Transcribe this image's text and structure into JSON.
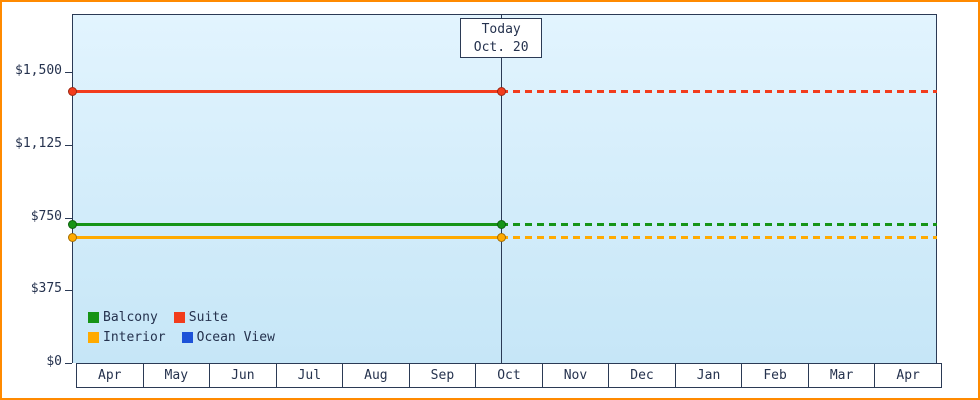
{
  "colors": {
    "frame": "#ff8a00",
    "plot_bg_top": "#e2f4fe",
    "plot_bg_bottom": "#c6e6f7",
    "axis": "#2b3a55",
    "text": "#25324e",
    "balcony": "#169416",
    "suite": "#f23c1c",
    "interior": "#ffaa00",
    "ocean_view": "#1d52d8"
  },
  "chart_data": {
    "type": "line",
    "title": "",
    "xlabel": "",
    "ylabel": "",
    "x_categories": [
      "Apr",
      "May",
      "Jun",
      "Jul",
      "Aug",
      "Sep",
      "Oct",
      "Nov",
      "Dec",
      "Jan",
      "Feb",
      "Mar",
      "Apr"
    ],
    "y_ticks": [
      "$1,500",
      "$1,125",
      "$750",
      "$375",
      "$0"
    ],
    "y_tick_values": [
      1500,
      1125,
      750,
      375,
      0
    ],
    "ylim": [
      0,
      1500
    ],
    "grid": false,
    "legend_position": "bottom-left-inside",
    "today": {
      "label_line1": "Today",
      "label_line2": "Oct. 20",
      "month": "Oct",
      "month_index": 6,
      "fraction": 0.45
    },
    "series": [
      {
        "name": "Balcony",
        "color_key": "balcony",
        "value": 715,
        "solid_until": "today",
        "dotted_after": true
      },
      {
        "name": "Suite",
        "color_key": "suite",
        "value": 1400,
        "solid_until": "today",
        "dotted_after": true
      },
      {
        "name": "Interior",
        "color_key": "interior",
        "value": 645,
        "solid_until": "today",
        "dotted_after": true
      },
      {
        "name": "Ocean View",
        "color_key": "ocean_view",
        "value": null,
        "solid_until": null,
        "dotted_after": false
      }
    ]
  }
}
